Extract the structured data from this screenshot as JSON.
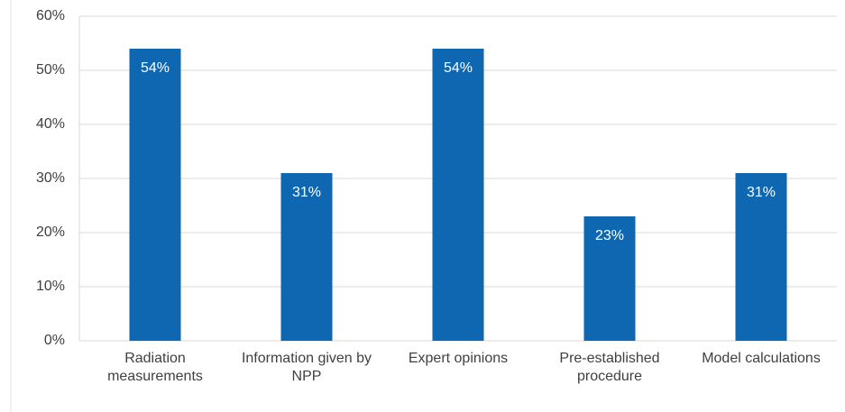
{
  "chart_data": {
    "type": "bar",
    "categories": [
      "Radiation measurements",
      "Information given by NPP",
      "Expert opinions",
      "Pre-established procedure",
      "Model calculations"
    ],
    "values": [
      54,
      31,
      54,
      23,
      31
    ],
    "value_labels": [
      "54%",
      "31%",
      "54%",
      "23%",
      "31%"
    ],
    "color": "#0f67b1",
    "ylim": [
      0,
      60
    ],
    "yticks": [
      {
        "value": 0,
        "label": "0%"
      },
      {
        "value": 10,
        "label": "10%"
      },
      {
        "value": 20,
        "label": "20%"
      },
      {
        "value": 30,
        "label": "30%"
      },
      {
        "value": 40,
        "label": "40%"
      },
      {
        "value": 50,
        "label": "50%"
      },
      {
        "value": 60,
        "label": "60%"
      }
    ],
    "grid": true
  }
}
